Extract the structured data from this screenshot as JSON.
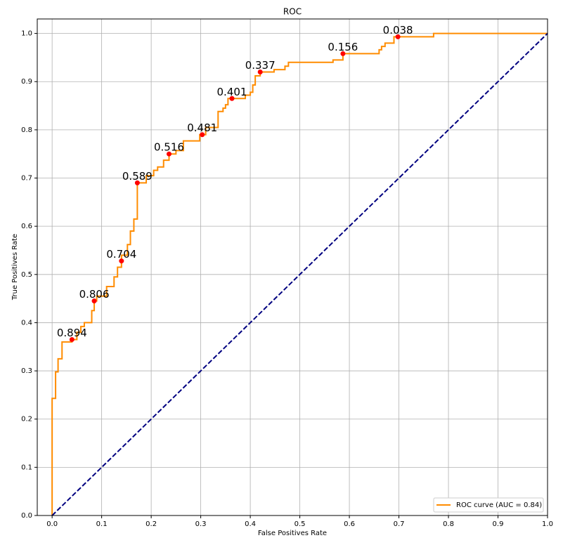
{
  "chart_data": {
    "type": "line",
    "title": "ROC",
    "x_label": "False Positives Rate",
    "y_label": "True Positives Rate",
    "xlim": [
      -0.03,
      1.0
    ],
    "ylim": [
      0,
      1.03
    ],
    "grid": true,
    "legend": "lower right",
    "xticks": [
      {
        "value": 0,
        "label": "0.0"
      },
      {
        "value": 0.1,
        "label": "0.1"
      },
      {
        "value": 0.2,
        "label": "0.2"
      },
      {
        "value": 0.3,
        "label": "0.3"
      },
      {
        "value": 0.4,
        "label": "0.4"
      },
      {
        "value": 0.5,
        "label": "0.5"
      },
      {
        "value": 0.6,
        "label": "0.6"
      },
      {
        "value": 0.7,
        "label": "0.7"
      },
      {
        "value": 0.8,
        "label": "0.8"
      },
      {
        "value": 0.9,
        "label": "0.9"
      },
      {
        "value": 1,
        "label": "1.0"
      }
    ],
    "yticks": [
      {
        "value": 0,
        "label": "0.0"
      },
      {
        "value": 0.1,
        "label": "0.1"
      },
      {
        "value": 0.2,
        "label": "0.2"
      },
      {
        "value": 0.3,
        "label": "0.3"
      },
      {
        "value": 0.4,
        "label": "0.4"
      },
      {
        "value": 0.5,
        "label": "0.5"
      },
      {
        "value": 0.6,
        "label": "0.6"
      },
      {
        "value": 0.7,
        "label": "0.7"
      },
      {
        "value": 0.8,
        "label": "0.8"
      },
      {
        "value": 0.9,
        "label": "0.9"
      },
      {
        "value": 1,
        "label": "1.0"
      }
    ],
    "series": [
      {
        "name": "ROC curve (AUC = 0.84)",
        "color": "#ff8c00",
        "linestyle": "solid",
        "x": [
          0,
          0,
          0.007,
          0.007,
          0.012,
          0.012,
          0.02,
          0.02,
          0.04,
          0.04,
          0.05,
          0.05,
          0.058,
          0.058,
          0.065,
          0.065,
          0.08,
          0.08,
          0.085,
          0.085,
          0.09,
          0.09,
          0.11,
          0.11,
          0.125,
          0.125,
          0.132,
          0.132,
          0.14,
          0.14,
          0.152,
          0.152,
          0.158,
          0.158,
          0.165,
          0.165,
          0.172,
          0.172,
          0.19,
          0.19,
          0.205,
          0.205,
          0.213,
          0.213,
          0.225,
          0.225,
          0.236,
          0.236,
          0.25,
          0.25,
          0.265,
          0.265,
          0.298,
          0.298,
          0.31,
          0.31,
          0.335,
          0.335,
          0.345,
          0.345,
          0.35,
          0.35,
          0.355,
          0.355,
          0.39,
          0.39,
          0.4,
          0.4,
          0.405,
          0.405,
          0.41,
          0.41,
          0.42,
          0.42,
          0.448,
          0.448,
          0.47,
          0.47,
          0.477,
          0.477,
          0.567,
          0.567,
          0.587,
          0.587,
          0.66,
          0.66,
          0.665,
          0.665,
          0.672,
          0.672,
          0.69,
          0.69,
          0.77,
          0.77,
          1.0
        ],
        "values": [
          0,
          0.243,
          0.243,
          0.298,
          0.298,
          0.325,
          0.325,
          0.36,
          0.36,
          0.365,
          0.365,
          0.38,
          0.38,
          0.392,
          0.392,
          0.4,
          0.4,
          0.425,
          0.425,
          0.445,
          0.445,
          0.455,
          0.455,
          0.475,
          0.475,
          0.495,
          0.495,
          0.515,
          0.515,
          0.54,
          0.54,
          0.562,
          0.562,
          0.59,
          0.59,
          0.615,
          0.615,
          0.69,
          0.69,
          0.705,
          0.705,
          0.716,
          0.716,
          0.723,
          0.723,
          0.737,
          0.737,
          0.75,
          0.75,
          0.757,
          0.757,
          0.777,
          0.777,
          0.79,
          0.79,
          0.805,
          0.805,
          0.838,
          0.838,
          0.845,
          0.845,
          0.852,
          0.852,
          0.865,
          0.865,
          0.872,
          0.872,
          0.878,
          0.878,
          0.893,
          0.893,
          0.912,
          0.912,
          0.92,
          0.92,
          0.925,
          0.925,
          0.932,
          0.932,
          0.94,
          0.94,
          0.945,
          0.945,
          0.958,
          0.958,
          0.966,
          0.966,
          0.973,
          0.973,
          0.98,
          0.98,
          0.993,
          0.993,
          1.0,
          1.0
        ]
      },
      {
        "color": "#000080",
        "linestyle": "dashed",
        "x": [
          0,
          1
        ],
        "values": [
          0,
          1
        ]
      }
    ],
    "thresholds": {
      "color": "#ff0000",
      "x": [
        0.04,
        0.085,
        0.14,
        0.172,
        0.236,
        0.303,
        0.363,
        0.42,
        0.587,
        0.698
      ],
      "values": [
        0.365,
        0.445,
        0.528,
        0.69,
        0.75,
        0.79,
        0.865,
        0.92,
        0.958,
        0.993
      ],
      "labels": [
        "0.894",
        "0.806",
        "0.704",
        "0.589",
        "0.516",
        "0.481",
        "0.401",
        "0.337",
        "0.156",
        "0.038"
      ]
    }
  }
}
